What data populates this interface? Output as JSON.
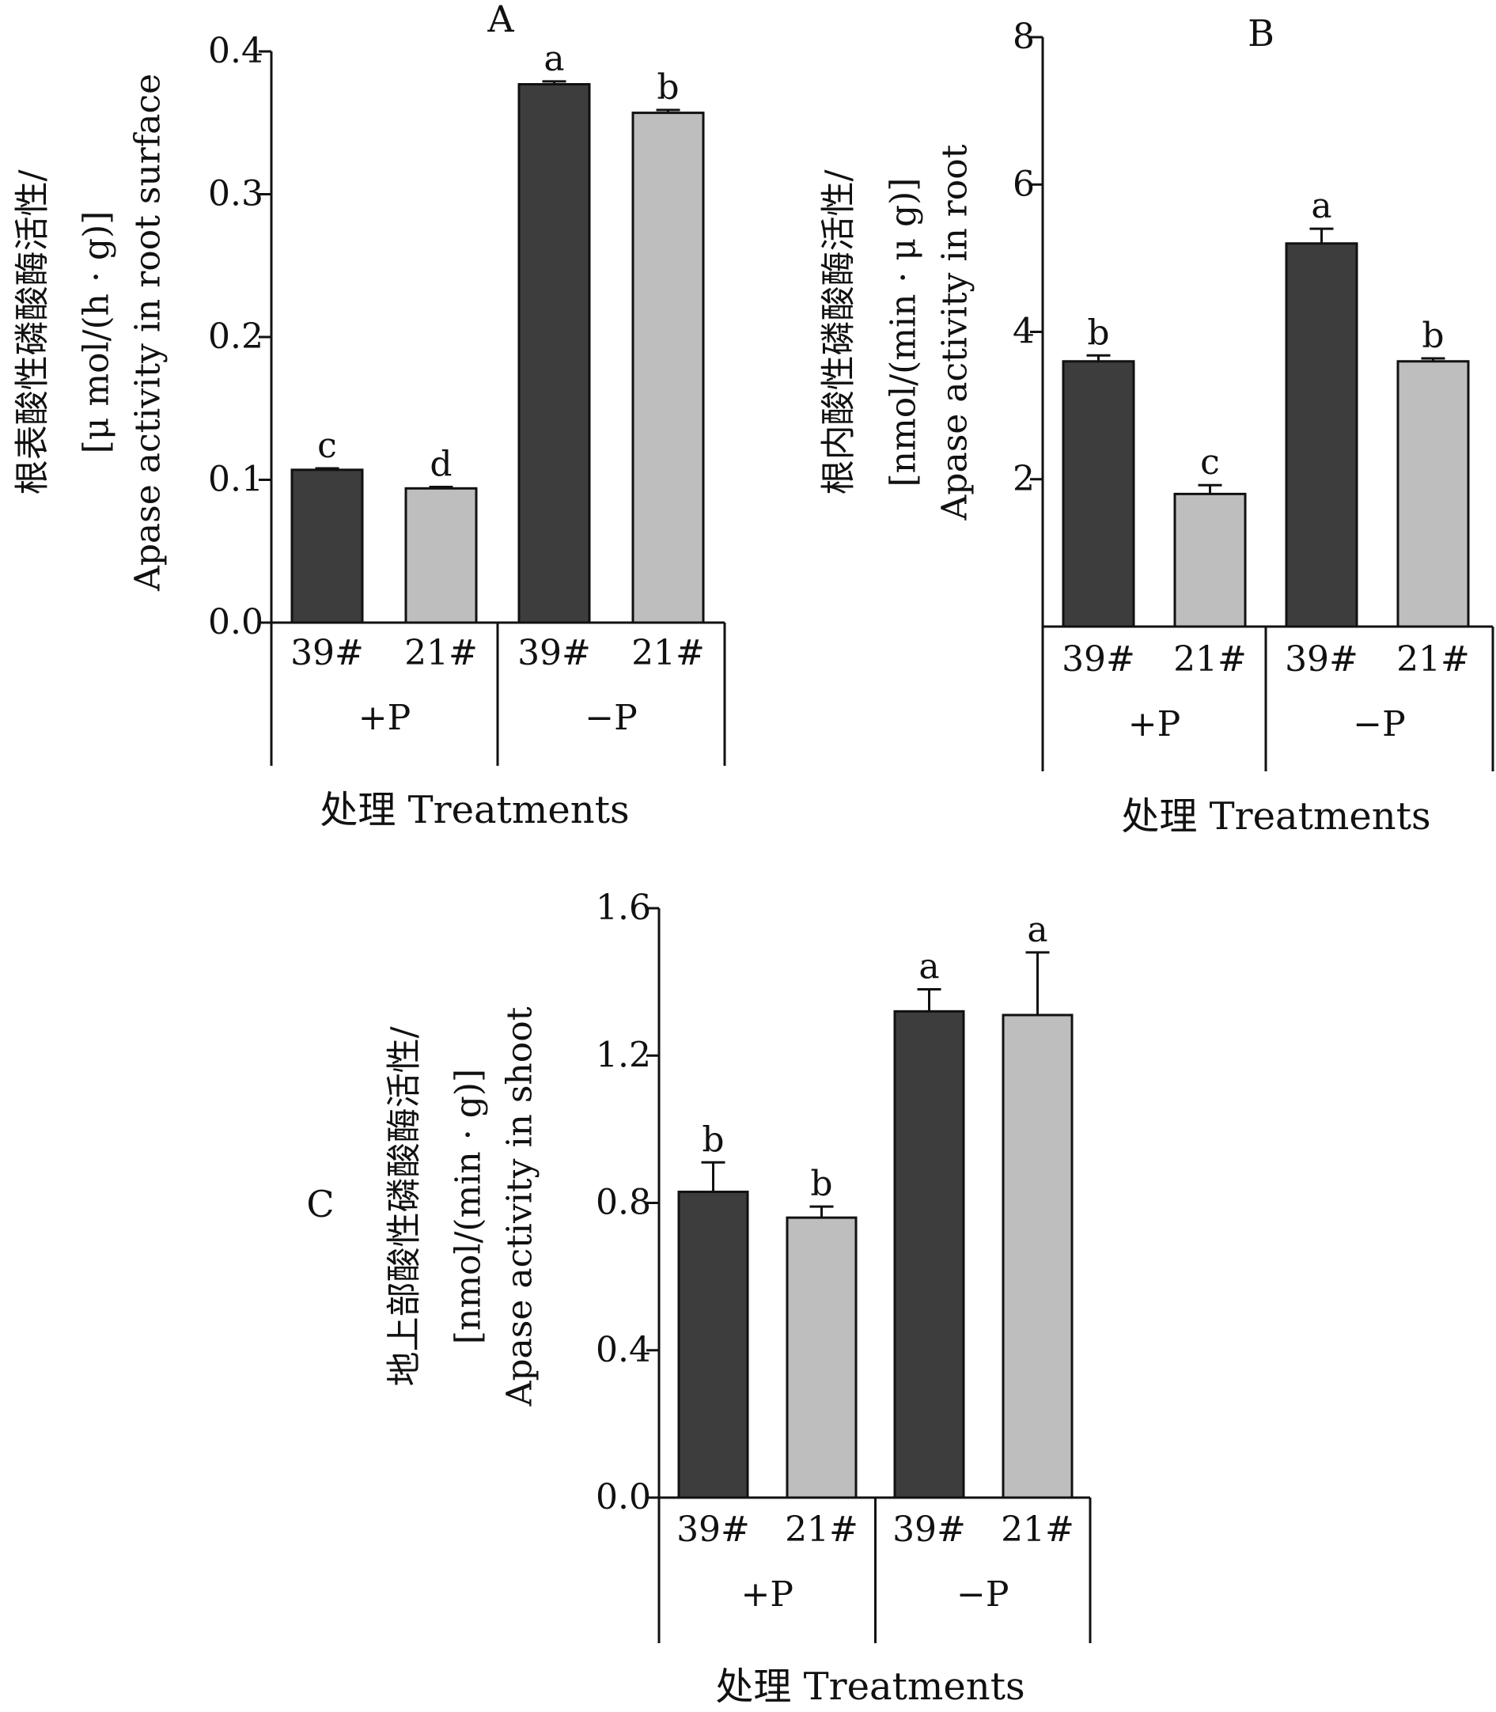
{
  "colors": {
    "axis": "#111111",
    "bar_39": "#3d3d3d",
    "bar_21": "#bebebe"
  },
  "chart_data": [
    {
      "type": "bar",
      "panel_label": "A",
      "ylabel_lines": [
        "根表酸性磷酸酶活性/",
        "[μ mol/(h · g)]",
        "Apase activity in root surface"
      ],
      "xlabel": "处理 Treatments",
      "ylim": [
        0,
        0.4
      ],
      "yticks": [
        0.0,
        0.1,
        0.2,
        0.3,
        0.4
      ],
      "ytick_labels": [
        "0.0",
        "0.1",
        "0.2",
        "0.3",
        "0.4"
      ],
      "groups": [
        "+P",
        "−P"
      ],
      "categories": [
        "39#",
        "21#",
        "39#",
        "21#"
      ],
      "values": [
        0.107,
        0.094,
        0.377,
        0.357
      ],
      "errors": [
        0.001,
        0.001,
        0.002,
        0.002
      ],
      "letters": [
        "c",
        "d",
        "a",
        "b"
      ]
    },
    {
      "type": "bar",
      "panel_label": "B",
      "ylabel_lines": [
        "根内酸性磷酸酶活性/",
        "[nmol/(min · μ g)]",
        "Apase activity in root"
      ],
      "xlabel": "处理 Treatments",
      "ylim": [
        0,
        8
      ],
      "yticks": [
        2,
        4,
        6,
        8
      ],
      "ytick_labels": [
        "2",
        "4",
        "6",
        "8"
      ],
      "groups": [
        "+P",
        "−P"
      ],
      "categories": [
        "39#",
        "21#",
        "39#",
        "21#"
      ],
      "values": [
        3.6,
        1.8,
        5.2,
        3.6
      ],
      "errors": [
        0.08,
        0.12,
        0.2,
        0.04
      ],
      "letters": [
        "b",
        "c",
        "a",
        "b"
      ]
    },
    {
      "type": "bar",
      "panel_label": "C",
      "ylabel_lines": [
        "地上部酸性磷酸酶活性/",
        "[nmol/(min · g)]",
        "Apase activity in shoot"
      ],
      "xlabel": "处理 Treatments",
      "ylim": [
        0,
        1.6
      ],
      "yticks": [
        0.0,
        0.4,
        0.8,
        1.2,
        1.6
      ],
      "ytick_labels": [
        "0.0",
        "0.4",
        "0.8",
        "1.2",
        "1.6"
      ],
      "groups": [
        "+P",
        "−P"
      ],
      "categories": [
        "39#",
        "21#",
        "39#",
        "21#"
      ],
      "values": [
        0.83,
        0.76,
        1.32,
        1.31
      ],
      "errors": [
        0.08,
        0.03,
        0.06,
        0.17
      ],
      "letters": [
        "b",
        "b",
        "a",
        "a"
      ]
    }
  ]
}
